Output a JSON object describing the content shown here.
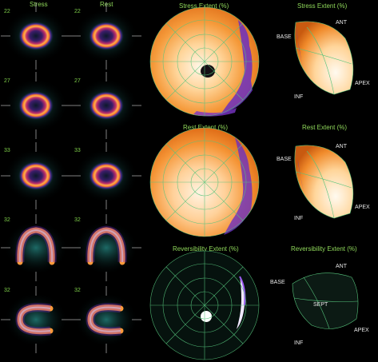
{
  "columns": {
    "stress": "Stress",
    "rest": "Rest"
  },
  "slices": [
    {
      "stress_num": "22",
      "rest_num": "22"
    },
    {
      "stress_num": "27",
      "rest_num": "27"
    },
    {
      "stress_num": "33",
      "rest_num": "33"
    },
    {
      "stress_num": "32",
      "rest_num": "32"
    },
    {
      "stress_num": "32",
      "rest_num": "32"
    }
  ],
  "polar_maps": [
    {
      "title": "Stress Extent (%)"
    },
    {
      "title": "Rest Extent (%)"
    },
    {
      "title": "Reversibility Extent (%)"
    }
  ],
  "views_3d": [
    {
      "title": "Stress Extent (%)",
      "base": "BASE",
      "ant": "ANT",
      "apex": "APEX",
      "inf": "INF"
    },
    {
      "title": "Rest Extent (%)",
      "base": "BASE",
      "ant": "ANT",
      "apex": "APEX",
      "inf": "INF"
    },
    {
      "title": "Reversibility Extent (%)",
      "base": "BASE",
      "ant": "ANT",
      "apex": "APEX",
      "inf": "INF",
      "sept": "SEPT"
    }
  ],
  "colors": {
    "label_green": "#8fd85a",
    "grid_green": "#56c47c",
    "hot_orange": "#f08a1c",
    "cold_purple": "#6a3cc8"
  }
}
